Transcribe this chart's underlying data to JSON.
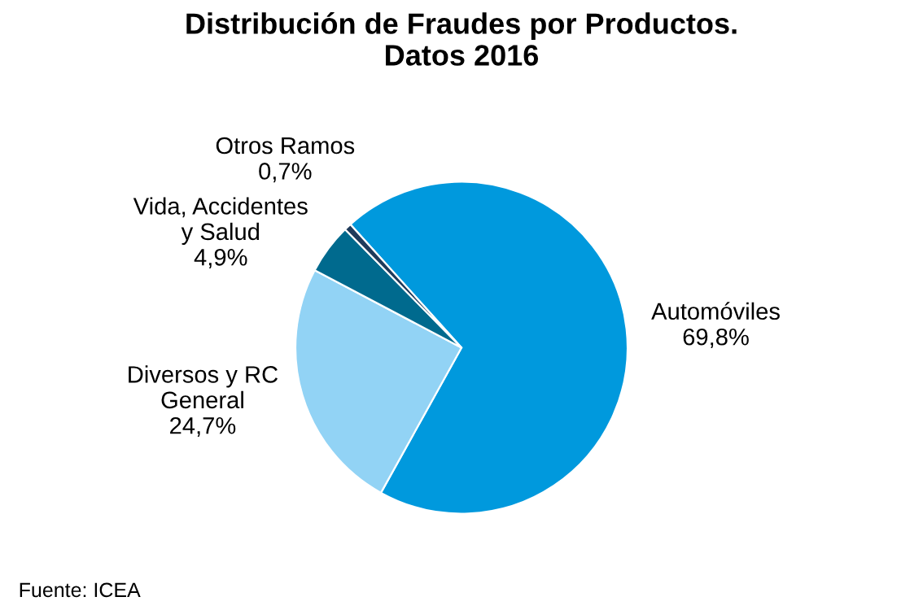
{
  "chart_data": {
    "type": "pie",
    "title": "Distribución de Fraudes por Productos.\nDatos 2016",
    "categories": [
      "Automóviles",
      "Diversos y RC\nGeneral",
      "Vida, Accidentes\ny Salud",
      "Otros Ramos"
    ],
    "values": [
      69.8,
      24.7,
      4.9,
      0.7
    ],
    "value_labels": [
      "69,8%",
      "24,7%",
      "4,9%",
      "0,7%"
    ],
    "colors": [
      "#0099dd",
      "#92d3f5",
      "#006a8e",
      "#1f3a5a"
    ],
    "legend": false,
    "annotations": [
      "Fuente: ICEA"
    ]
  }
}
